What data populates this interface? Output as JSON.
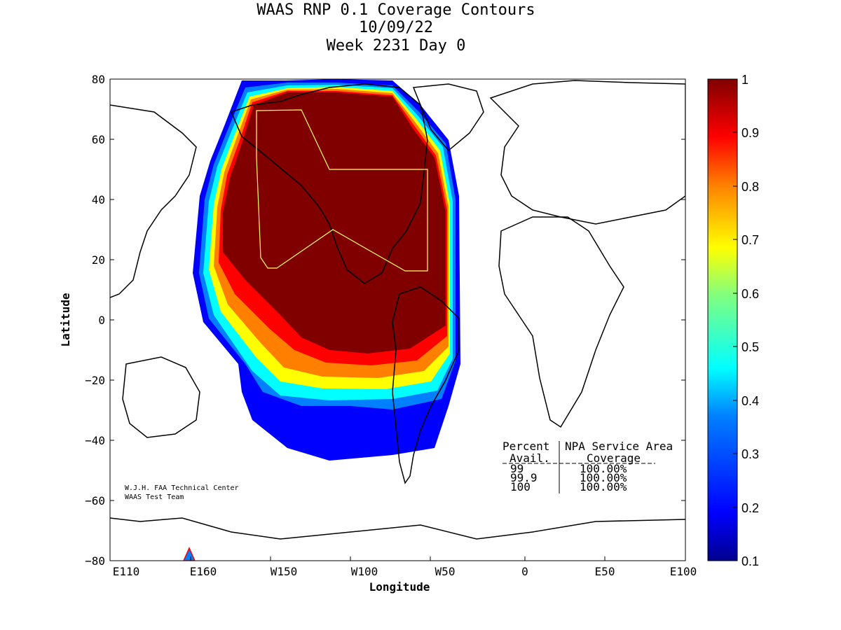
{
  "title": [
    "WAAS RNP 0.1 Coverage Contours",
    "10/09/22",
    "Week 2231 Day 0"
  ],
  "xlabel": "Longitude",
  "ylabel": "Latitude",
  "x_ticks": [
    "E110",
    "E160",
    "W150",
    "W100",
    "W50",
    "0",
    "E50",
    "E100"
  ],
  "y_ticks": [
    "80",
    "60",
    "40",
    "20",
    "0",
    "−20",
    "−40",
    "−60",
    "−80"
  ],
  "credit": [
    "W.J.H. FAA Technical Center",
    "WAAS Test Team"
  ],
  "table": {
    "header1": [
      "Percent",
      "NPA Service Area"
    ],
    "header2": [
      "Avail.",
      "Coverage"
    ],
    "rows": [
      [
        "99",
        "100.00%"
      ],
      [
        "99.9",
        "100.00%"
      ],
      [
        "100",
        "100.00%"
      ]
    ]
  },
  "colorbar": {
    "ticks": [
      "1",
      "0.9",
      "0.8",
      "0.7",
      "0.6",
      "0.5",
      "0.4",
      "0.3",
      "0.2",
      "0.1"
    ],
    "colormap": "jet",
    "colors": [
      "#00008f",
      "#0000ff",
      "#0080ff",
      "#00ffff",
      "#80ff80",
      "#ffff00",
      "#ff8000",
      "#ff0000",
      "#800000"
    ]
  },
  "map": {
    "x_range": [
      "E110",
      "E100"
    ],
    "y_range": [
      -80,
      80
    ],
    "service_area_color": "#ffff66",
    "coverage_color_max": "#800000"
  }
}
